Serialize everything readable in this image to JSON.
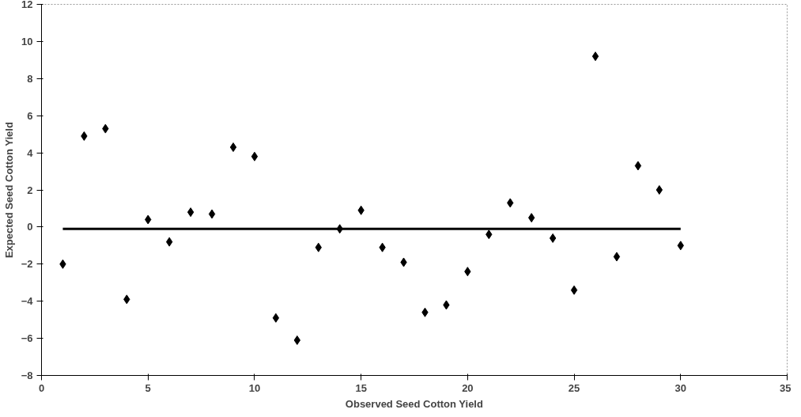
{
  "chart_data": {
    "type": "scatter",
    "xlabel": "Observed Seed Cotton Yield",
    "ylabel": "Expected Seed Cotton Yield",
    "xlim": [
      0,
      35
    ],
    "ylim": [
      -8,
      12
    ],
    "xticks": [
      0,
      5,
      10,
      15,
      20,
      25,
      30,
      35
    ],
    "yticks": [
      -8,
      -6,
      -4,
      -2,
      0,
      2,
      4,
      6,
      8,
      10,
      12
    ],
    "grid": false,
    "series": [
      {
        "color": "#000000",
        "marker": "diamond",
        "x": [
          1,
          2,
          3,
          4,
          5,
          6,
          7,
          8,
          9,
          10,
          11,
          12,
          13,
          14,
          15,
          16,
          17,
          18,
          19,
          20,
          21,
          22,
          23,
          24,
          25,
          26,
          27,
          28,
          29,
          30
        ],
        "values": [
          -2.0,
          4.9,
          5.3,
          -3.9,
          0.4,
          -0.8,
          0.8,
          0.7,
          4.3,
          3.8,
          -4.9,
          -6.1,
          -1.1,
          -0.1,
          0.9,
          -1.1,
          -1.9,
          -4.6,
          -4.2,
          -2.4,
          -0.4,
          1.3,
          0.5,
          -0.6,
          -3.4,
          9.2,
          -1.6,
          3.3,
          2.0,
          -1.0
        ]
      },
      {
        "type": "line",
        "color": "#000000",
        "marker": "none",
        "x": [
          1,
          30
        ],
        "values": [
          -0.1,
          -0.1
        ]
      }
    ]
  }
}
